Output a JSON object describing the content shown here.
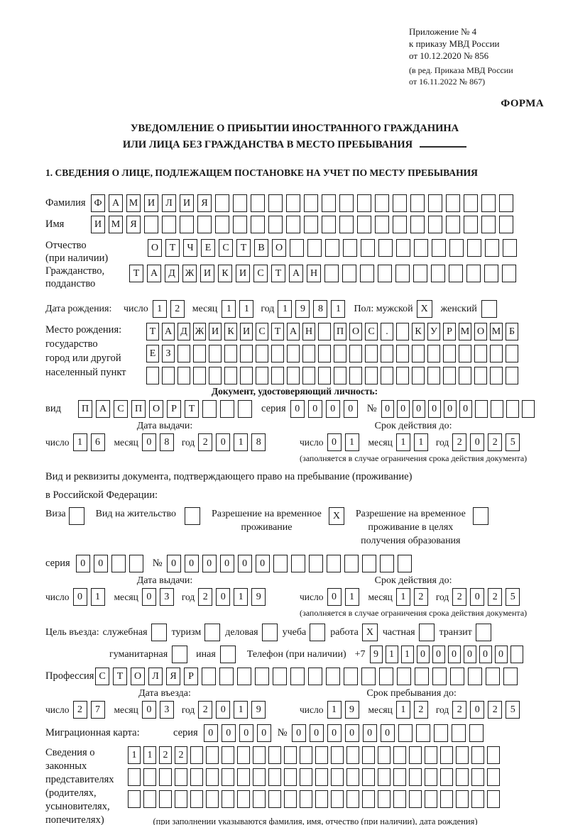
{
  "header": {
    "line1": "Приложение № 4",
    "line2": "к приказу МВД России",
    "line3": "от 10.12.2020 № 856",
    "line4": "(в ред. Приказа МВД России",
    "line5": "от 16.11.2022 № 867)",
    "forma": "ФОРМА"
  },
  "title": {
    "line1": "УВЕДОМЛЕНИЕ О ПРИБЫТИИ ИНОСТРАННОГО ГРАЖДАНИНА",
    "line2": "ИЛИ ЛИЦА БЕЗ ГРАЖДАНСТВА В МЕСТО ПРЕБЫВАНИЯ"
  },
  "section1": {
    "title": "1. СВЕДЕНИЯ О ЛИЦЕ, ПОДЛЕЖАЩЕМ ПОСТАНОВКЕ НА УЧЕТ ПО МЕСТУ ПРЕБЫВАНИЯ"
  },
  "labels": {
    "surname": "Фамилия",
    "given_name": "Имя",
    "patronymic_line1": "Отчество",
    "patronymic_line2": "(при наличии)",
    "citizenship_line1": "Гражданство,",
    "citizenship_line2": "подданство",
    "birth_date": "Дата рождения:",
    "day": "число",
    "month": "месяц",
    "year": "год",
    "sex_male": "Пол: мужской",
    "sex_female": "женский",
    "birth_place_line1": "Место рождения:",
    "birth_place_line2": "государство",
    "birth_place_line3": "город или другой",
    "birth_place_line4": "населенный пункт",
    "id_doc_header": "Документ, удостоверяющий личность:",
    "kind": "вид",
    "series": "серия",
    "number_sign": "№",
    "issue_date": "Дата выдачи:",
    "valid_until": "Срок действия до:",
    "restriction_note": "(заполняется в случае ограничения срока действия документа)",
    "stay_doc_line1": "Вид и реквизиты документа, подтверждающего право на пребывание (проживание)",
    "stay_doc_line2": "в Российской Федерации:",
    "visa": "Виза",
    "residence_permit": "Вид на жительство",
    "temp_permit_line1": "Разрешение на временное",
    "temp_permit_line2": "проживание",
    "edu_permit_line1": "Разрешение на временное",
    "edu_permit_line2": "проживание в целях",
    "edu_permit_line3": "получения образования",
    "purpose": "Цель въезда:",
    "purpose_official": "служебная",
    "purpose_tourism": "туризм",
    "purpose_business": "деловая",
    "purpose_study": "учеба",
    "purpose_work": "работа",
    "purpose_private": "частная",
    "purpose_transit": "транзит",
    "purpose_humanitarian": "гуманитарная",
    "purpose_other": "иная",
    "phone": "Телефон (при наличии)",
    "phone_prefix": "+7",
    "profession": "Профессия",
    "entry_date": "Дата въезда:",
    "stay_until": "Срок пребывания до:",
    "migration_card": "Миграционная карта:",
    "reps_line1": "Сведения о",
    "reps_line2": "законных",
    "reps_line3": "представителях",
    "reps_line4": "(родителях,",
    "reps_line5": "усыновителях,",
    "reps_line6": "попечителях)",
    "reps_note": "(при заполнении указываются фамилия, имя, отчество (при наличии), дата рождения)"
  },
  "grids": {
    "surname": [
      "Ф",
      "А",
      "М",
      "И",
      "Л",
      "И",
      "Я",
      "",
      "",
      "",
      "",
      "",
      "",
      "",
      "",
      "",
      "",
      "",
      "",
      "",
      "",
      "",
      "",
      ""
    ],
    "given_name": [
      "И",
      "М",
      "Я",
      "",
      "",
      "",
      "",
      "",
      "",
      "",
      "",
      "",
      "",
      "",
      "",
      "",
      "",
      "",
      "",
      "",
      "",
      "",
      "",
      ""
    ],
    "patronymic": [
      "О",
      "Т",
      "Ч",
      "Е",
      "С",
      "Т",
      "В",
      "О",
      "",
      "",
      "",
      "",
      "",
      "",
      "",
      "",
      "",
      "",
      "",
      "",
      ""
    ],
    "citizenship": [
      "Т",
      "А",
      "Д",
      "Ж",
      "И",
      "К",
      "И",
      "С",
      "Т",
      "А",
      "Н",
      "",
      "",
      "",
      "",
      "",
      "",
      "",
      "",
      "",
      "",
      ""
    ],
    "birth_place1": [
      "Т",
      "А",
      "Д",
      "Ж",
      "И",
      "К",
      "И",
      "С",
      "Т",
      "А",
      "Н",
      "",
      "П",
      "О",
      "С",
      ".",
      "",
      "К",
      "У",
      "Р",
      "М",
      "О",
      "М",
      "Б"
    ],
    "birth_place2": [
      "Е",
      "З",
      "",
      "",
      "",
      "",
      "",
      "",
      "",
      "",
      "",
      "",
      "",
      "",
      "",
      "",
      "",
      "",
      "",
      "",
      "",
      "",
      "",
      ""
    ],
    "birth_place3": [
      "",
      "",
      "",
      "",
      "",
      "",
      "",
      "",
      "",
      "",
      "",
      "",
      "",
      "",
      "",
      "",
      "",
      "",
      "",
      "",
      "",
      "",
      "",
      ""
    ],
    "doc_kind": [
      "П",
      "А",
      "С",
      "П",
      "О",
      "Р",
      "Т",
      "",
      "",
      ""
    ],
    "doc_series": [
      "0",
      "0",
      "0",
      "0"
    ],
    "doc_number": [
      "0",
      "0",
      "0",
      "0",
      "0",
      "0",
      "",
      "",
      "",
      ""
    ],
    "issue1_day": [
      "1",
      "6"
    ],
    "issue1_month": [
      "0",
      "8"
    ],
    "issue1_year": [
      "2",
      "0",
      "1",
      "8"
    ],
    "valid1_day": [
      "0",
      "1"
    ],
    "valid1_month": [
      "1",
      "1"
    ],
    "valid1_year": [
      "2",
      "0",
      "2",
      "5"
    ],
    "permit_series": [
      "0",
      "0",
      "",
      ""
    ],
    "permit_number": [
      "0",
      "0",
      "0",
      "0",
      "0",
      "0",
      "",
      "",
      "",
      "",
      "",
      "",
      "",
      ""
    ],
    "issue2_day": [
      "0",
      "1"
    ],
    "issue2_month": [
      "0",
      "3"
    ],
    "issue2_year": [
      "2",
      "0",
      "1",
      "9"
    ],
    "valid2_day": [
      "0",
      "1"
    ],
    "valid2_month": [
      "1",
      "2"
    ],
    "valid2_year": [
      "2",
      "0",
      "2",
      "5"
    ],
    "phone": [
      "9",
      "1",
      "1",
      "0",
      "0",
      "0",
      "0",
      "0",
      "0",
      ""
    ],
    "profession": [
      "С",
      "Т",
      "О",
      "Л",
      "Я",
      "Р",
      "",
      "",
      "",
      "",
      "",
      "",
      "",
      "",
      "",
      "",
      "",
      "",
      "",
      "",
      "",
      "",
      "",
      ""
    ],
    "entry_day": [
      "2",
      "7"
    ],
    "entry_month": [
      "0",
      "3"
    ],
    "entry_year": [
      "2",
      "0",
      "1",
      "9"
    ],
    "stay_day": [
      "1",
      "9"
    ],
    "stay_month": [
      "1",
      "2"
    ],
    "stay_year": [
      "2",
      "0",
      "2",
      "5"
    ],
    "migration_series": [
      "0",
      "0",
      "0",
      "0"
    ],
    "migration_number": [
      "0",
      "0",
      "0",
      "0",
      "0",
      "0",
      "",
      "",
      "",
      "",
      ""
    ],
    "reps1": [
      "1",
      "1",
      "2",
      "2",
      "",
      "",
      "",
      "",
      "",
      "",
      "",
      "",
      "",
      "",
      "",
      "",
      "",
      "",
      "",
      "",
      "",
      "",
      "",
      ""
    ],
    "reps2": [
      "",
      "",
      "",
      "",
      "",
      "",
      "",
      "",
      "",
      "",
      "",
      "",
      "",
      "",
      "",
      "",
      "",
      "",
      "",
      "",
      "",
      "",
      "",
      ""
    ],
    "reps3": [
      "",
      "",
      "",
      "",
      "",
      "",
      "",
      "",
      "",
      "",
      "",
      "",
      "",
      "",
      "",
      "",
      "",
      "",
      "",
      "",
      "",
      "",
      "",
      ""
    ]
  },
  "checks": {
    "sex_male": "X",
    "sex_female": "",
    "visa": "",
    "residence_permit": "",
    "temp_permit": "X",
    "edu_permit": "",
    "purpose_official": "",
    "purpose_tourism": "",
    "purpose_business": "",
    "purpose_study": "",
    "purpose_work": "X",
    "purpose_private": "",
    "purpose_transit": "",
    "purpose_humanitarian": "",
    "purpose_other": ""
  }
}
